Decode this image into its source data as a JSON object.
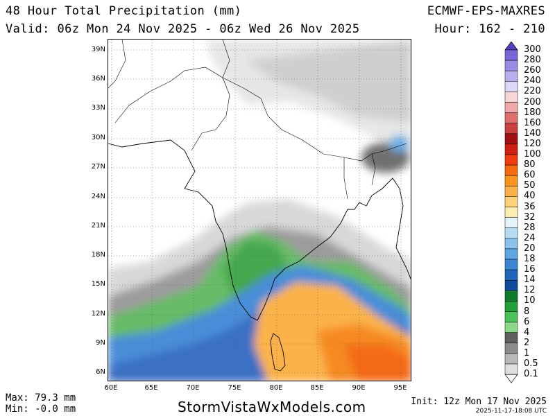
{
  "header": {
    "title": "48 Hour Total Precipitation (mm)",
    "valid": "Valid: 06z Mon 24 Nov 2025 - 06z Wed 26 Nov 2025",
    "model": "ECMWF-EPS-MAXRES",
    "hour": "Hour: 162 - 210"
  },
  "map": {
    "lat_labels": [
      "39N",
      "36N",
      "33N",
      "30N",
      "27N",
      "24N",
      "21N",
      "18N",
      "15N",
      "12N",
      "9N",
      "6N"
    ],
    "lon_labels": [
      "60E",
      "65E",
      "70E",
      "75E",
      "80E",
      "85E",
      "90E",
      "95E"
    ]
  },
  "colorbar": {
    "labels": [
      "300",
      "280",
      "260",
      "240",
      "220",
      "200",
      "180",
      "160",
      "140",
      "120",
      "100",
      "80",
      "60",
      "50",
      "40",
      "36",
      "32",
      "28",
      "24",
      "20",
      "18",
      "16",
      "14",
      "12",
      "10",
      "8",
      "6",
      "4",
      "2",
      "1",
      "0.5",
      "0.1"
    ],
    "colors": [
      "#5a3fbf",
      "#7a66d6",
      "#9a8ae3",
      "#bbb0ee",
      "#ddd8f7",
      "#f7d6d6",
      "#f0a8a8",
      "#e07070",
      "#c84040",
      "#a01010",
      "#d02010",
      "#f03c10",
      "#f86a10",
      "#fa9420",
      "#fbb24a",
      "#fcd27a",
      "#fbecb0",
      "#e6f4fa",
      "#b6dcf4",
      "#8ac2ec",
      "#5ea6e2",
      "#3d86d4",
      "#2266bb",
      "#124a9a",
      "#0f7a2a",
      "#22a03a",
      "#4cc25a",
      "#8ed88a",
      "#606060",
      "#8c8c8c",
      "#b8b8b8",
      "#dedede",
      "#f4f4f4"
    ]
  },
  "footer": {
    "max": "Max: 79.3 mm",
    "min": "Min: -0.0 mm",
    "site": "StormVistaWxModels.com",
    "init": "Init: 12z Mon 17 Nov 2025",
    "stamp": "2025-11-17-18:08 UTC"
  }
}
